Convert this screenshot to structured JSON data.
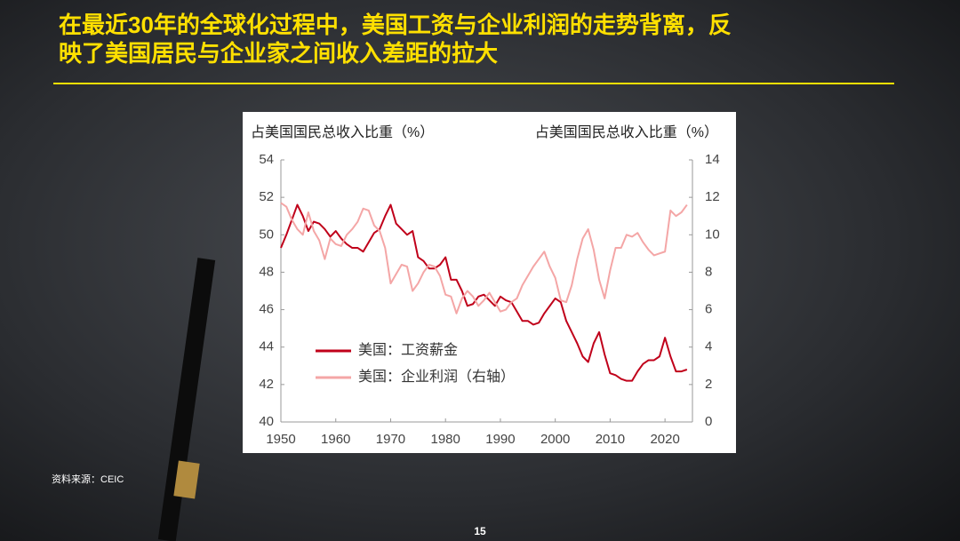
{
  "header": {
    "title": [
      "在最近30年的全球化过程中，美国工资与企业利润的走势背离，反",
      "映了美国居民与企业家之间收入差距的拉大"
    ]
  },
  "chart_data": {
    "type": "line",
    "ylabel": "占美国国民总收入比重（%）",
    "y2label": "占美国国民总收入比重（%）",
    "x": [
      1950,
      1951,
      1952,
      1953,
      1954,
      1955,
      1956,
      1957,
      1958,
      1959,
      1960,
      1961,
      1962,
      1963,
      1964,
      1965,
      1966,
      1967,
      1968,
      1969,
      1970,
      1971,
      1972,
      1973,
      1974,
      1975,
      1976,
      1977,
      1978,
      1979,
      1980,
      1981,
      1982,
      1983,
      1984,
      1985,
      1986,
      1987,
      1988,
      1989,
      1990,
      1991,
      1992,
      1993,
      1994,
      1995,
      1996,
      1997,
      1998,
      1999,
      2000,
      2001,
      2002,
      2003,
      2004,
      2005,
      2006,
      2007,
      2008,
      2009,
      2010,
      2011,
      2012,
      2013,
      2014,
      2015,
      2016,
      2017,
      2018,
      2019,
      2020,
      2021,
      2022,
      2023,
      2024
    ],
    "series": [
      {
        "name": "美国：工资薪金",
        "color": "#c0001a",
        "axis": "y",
        "values": [
          49.3,
          50.0,
          50.8,
          51.6,
          51.0,
          50.2,
          50.7,
          50.6,
          50.3,
          49.9,
          50.2,
          49.8,
          49.5,
          49.3,
          49.3,
          49.1,
          49.6,
          50.1,
          50.3,
          51.0,
          51.6,
          50.6,
          50.3,
          50.0,
          50.2,
          48.8,
          48.6,
          48.2,
          48.2,
          48.4,
          48.8,
          47.6,
          47.6,
          47.0,
          46.2,
          46.3,
          46.7,
          46.8,
          46.5,
          46.2,
          46.7,
          46.5,
          46.4,
          45.9,
          45.4,
          45.4,
          45.2,
          45.3,
          45.8,
          46.2,
          46.6,
          46.4,
          45.4,
          44.8,
          44.2,
          43.5,
          43.2,
          44.2,
          44.8,
          43.6,
          42.6,
          42.5,
          42.3,
          42.2,
          42.2,
          42.7,
          43.1,
          43.3,
          43.3,
          43.5,
          44.5,
          43.5,
          42.7,
          42.7,
          42.8
        ]
      },
      {
        "name": "美国：企业利润（右轴）",
        "color": "#f4a6a6",
        "axis": "y2",
        "values": [
          11.7,
          11.5,
          10.8,
          10.3,
          10.0,
          11.2,
          10.2,
          9.7,
          8.7,
          9.8,
          9.5,
          9.4,
          10.0,
          10.3,
          10.7,
          11.4,
          11.3,
          10.5,
          10.2,
          9.3,
          7.4,
          7.9,
          8.4,
          8.3,
          7.0,
          7.4,
          8.0,
          8.4,
          8.3,
          7.8,
          6.8,
          6.7,
          5.8,
          6.6,
          7.0,
          6.7,
          6.2,
          6.5,
          6.9,
          6.4,
          5.9,
          6.0,
          6.4,
          6.6,
          7.3,
          7.8,
          8.3,
          8.7,
          9.1,
          8.3,
          7.7,
          6.5,
          6.4,
          7.3,
          8.7,
          9.8,
          10.3,
          9.2,
          7.6,
          6.6,
          8.1,
          9.3,
          9.3,
          10.0,
          9.9,
          10.1,
          9.6,
          9.2,
          8.9,
          9.0,
          9.1,
          11.3,
          11.0,
          11.2,
          11.6
        ]
      }
    ],
    "xlim": [
      1950,
      2025
    ],
    "xticks": [
      1950,
      1960,
      1970,
      1980,
      1990,
      2000,
      2010,
      2020
    ],
    "ylim": [
      40,
      54
    ],
    "yticks": [
      40,
      42,
      44,
      46,
      48,
      50,
      52,
      54
    ],
    "y2lim": [
      0,
      14
    ],
    "y2ticks": [
      0,
      2,
      4,
      6,
      8,
      10,
      12,
      14
    ],
    "legend": "lower-left"
  },
  "footer": {
    "source": "资料来源：CEIC",
    "page": "15"
  }
}
